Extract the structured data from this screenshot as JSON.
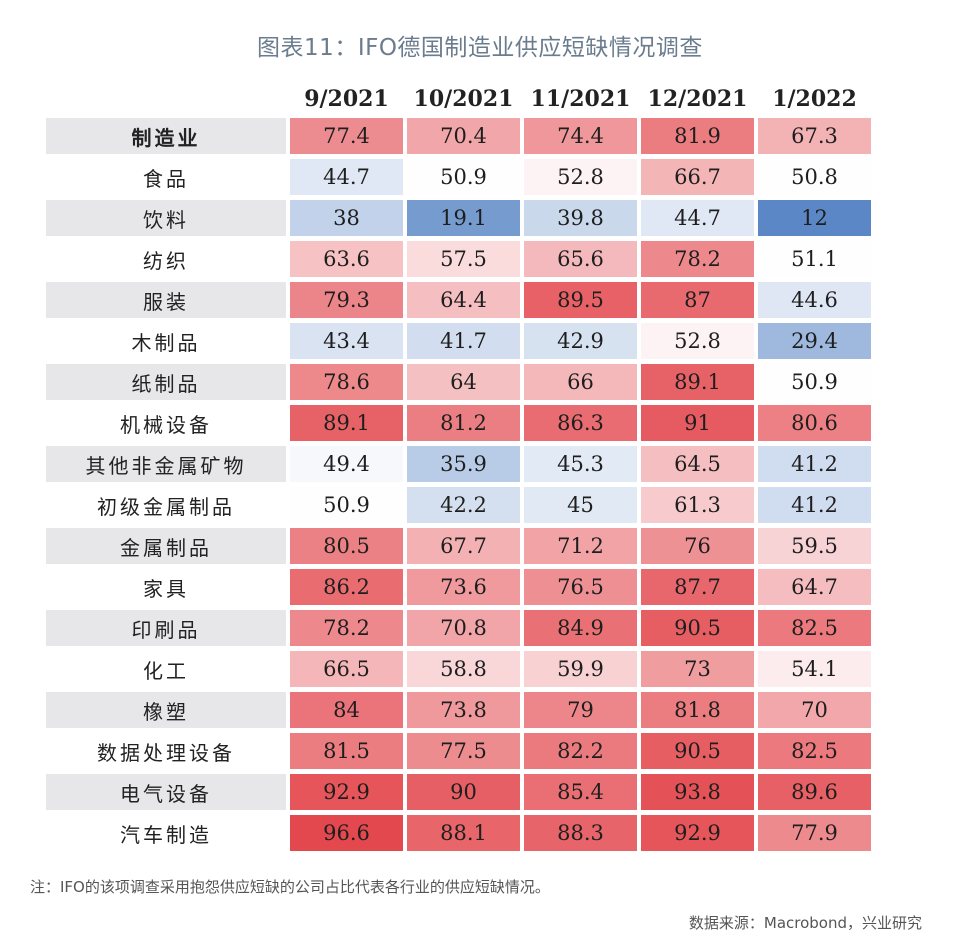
{
  "title": "图表11：IFO德国制造业供应短缺情况调查",
  "chart_data": {
    "type": "heatmap",
    "columns": [
      "9/2021",
      "10/2021",
      "11/2021",
      "12/2021",
      "1/2022"
    ],
    "rows": [
      {
        "label": "制造业",
        "values": [
          77.4,
          70.4,
          74.4,
          81.9,
          67.3
        ]
      },
      {
        "label": "食品",
        "values": [
          44.7,
          50.9,
          52.8,
          66.7,
          50.8
        ]
      },
      {
        "label": "饮料",
        "values": [
          38,
          19.1,
          39.8,
          44.7,
          12
        ]
      },
      {
        "label": "纺织",
        "values": [
          63.6,
          57.5,
          65.6,
          78.2,
          51.1
        ]
      },
      {
        "label": "服装",
        "values": [
          79.3,
          64.4,
          89.5,
          87,
          44.6
        ]
      },
      {
        "label": "木制品",
        "values": [
          43.4,
          41.7,
          42.9,
          52.8,
          29.4
        ]
      },
      {
        "label": "纸制品",
        "values": [
          78.6,
          64,
          66,
          89.1,
          50.9
        ]
      },
      {
        "label": "机械设备",
        "values": [
          89.1,
          81.2,
          86.3,
          91,
          80.6
        ]
      },
      {
        "label": "其他非金属矿物",
        "values": [
          49.4,
          35.9,
          45.3,
          64.5,
          41.2
        ]
      },
      {
        "label": "初级金属制品",
        "values": [
          50.9,
          42.2,
          45,
          61.3,
          41.2
        ]
      },
      {
        "label": "金属制品",
        "values": [
          80.5,
          67.7,
          71.2,
          76,
          59.5
        ]
      },
      {
        "label": "家具",
        "values": [
          86.2,
          73.6,
          76.5,
          87.7,
          64.7
        ]
      },
      {
        "label": "印刷品",
        "values": [
          78.2,
          70.8,
          84.9,
          90.5,
          82.5
        ]
      },
      {
        "label": "化工",
        "values": [
          66.5,
          58.8,
          59.9,
          73,
          54.1
        ]
      },
      {
        "label": "橡塑",
        "values": [
          84,
          73.8,
          79,
          81.8,
          70
        ]
      },
      {
        "label": "数据处理设备",
        "values": [
          81.5,
          77.5,
          82.2,
          90.5,
          82.5
        ]
      },
      {
        "label": "电气设备",
        "values": [
          92.9,
          90,
          85.4,
          93.8,
          89.6
        ]
      },
      {
        "label": "汽车制造",
        "values": [
          96.6,
          88.1,
          88.3,
          92.9,
          77.9
        ]
      }
    ],
    "color_scale": {
      "low": "#5b87c6",
      "mid": "#ffffff",
      "high": "#e3484e",
      "min": 12,
      "mid_value": 51,
      "max": 96.6
    }
  },
  "note": "注：IFO的该项调查采用抱怨供应短缺的公司占比代表各行业的供应短缺情况。",
  "source": "数据来源：Macrobond，兴业研究"
}
